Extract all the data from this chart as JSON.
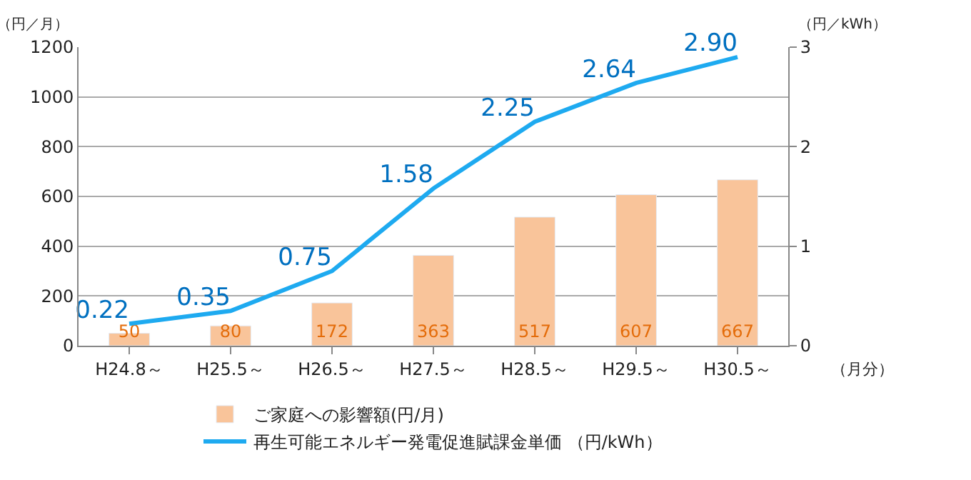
{
  "chart_data": {
    "type": "bar",
    "ylabel": "（円／月）",
    "y2label": "（円／kWh）",
    "xlabel": "（月分）",
    "categories": [
      "H24.8～",
      "H25.5～",
      "H26.5～",
      "H27.5～",
      "H28.5～",
      "H29.5～",
      "H30.5～"
    ],
    "series": [
      {
        "name": "ご家庭への影響額(円/月)",
        "color": "#f9c49a",
        "values": [
          50,
          80,
          172,
          363,
          517,
          607,
          667
        ]
      },
      {
        "name": "再生可能エネルギー発電促進賦課金単価 （円/kWh）",
        "type": "line",
        "axis": "y2",
        "color": "#1eaaf0",
        "values": [
          0.22,
          0.35,
          0.75,
          1.58,
          2.25,
          2.64,
          2.9
        ],
        "value_labels": [
          "0.22",
          "0.35",
          "0.75",
          "1.58",
          "2.25",
          "2.64",
          "2.90"
        ]
      }
    ],
    "ylim": [
      0,
      1200
    ],
    "yticks": [
      0,
      200,
      400,
      600,
      800,
      1000,
      1200
    ],
    "y2lim": [
      0,
      3
    ],
    "y2ticks": [
      0,
      1,
      2,
      3
    ],
    "data_labels": true,
    "grid": "y",
    "legend": "bottom",
    "marker": "none",
    "line_style": "solid"
  }
}
